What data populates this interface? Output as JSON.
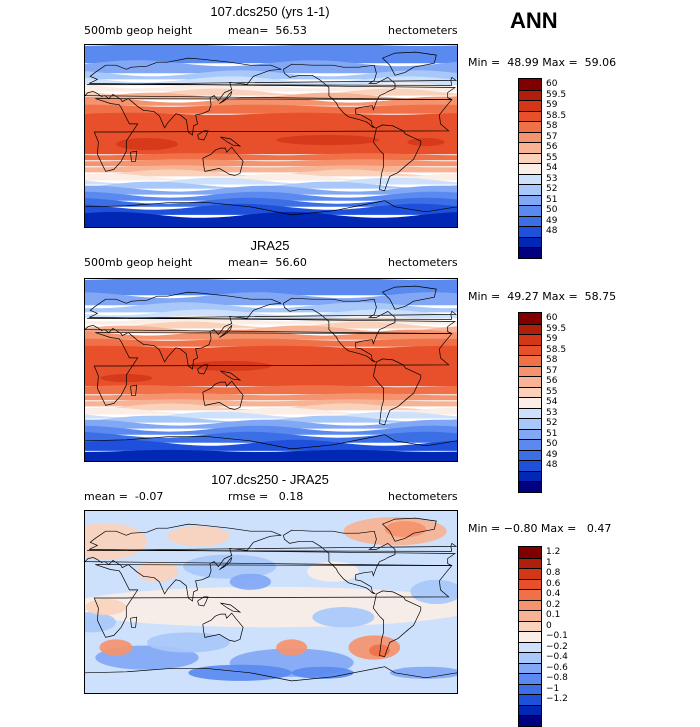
{
  "season": "ANN",
  "panels": [
    {
      "title": "107.dcs250 (yrs 1-1)",
      "left_text": "500mb geop height",
      "mean_text": "mean=  56.53",
      "units": "hectometers",
      "minmax": "Min =  48.99 Max =  59.06",
      "field": "abs",
      "colors": [
        "#000080",
        "#0028b4",
        "#1e50dc",
        "#3c6ee6",
        "#5a8af0",
        "#82a8f5",
        "#a8c8fa",
        "#cde0fc",
        "#fbeee6",
        "#fad2bc",
        "#f7b394",
        "#f4936e",
        "#f07048",
        "#e8502c",
        "#d43718",
        "#b01e0c",
        "#800000"
      ],
      "labels": [
        "48",
        "49",
        "50",
        "51",
        "52",
        "53",
        "54",
        "55",
        "56",
        "57",
        "58",
        "58.5",
        "59",
        "59.5",
        "60"
      ]
    },
    {
      "title": "JRA25",
      "left_text": "500mb geop height",
      "mean_text": "mean=  56.60",
      "units": "hectometers",
      "minmax": "Min =  49.27 Max =  58.75",
      "field": "abs",
      "colors": [
        "#000080",
        "#0028b4",
        "#1e50dc",
        "#3c6ee6",
        "#5a8af0",
        "#82a8f5",
        "#a8c8fa",
        "#cde0fc",
        "#fbeee6",
        "#fad2bc",
        "#f7b394",
        "#f4936e",
        "#f07048",
        "#e8502c",
        "#d43718",
        "#b01e0c",
        "#800000"
      ],
      "labels": [
        "48",
        "49",
        "50",
        "51",
        "52",
        "53",
        "54",
        "55",
        "56",
        "57",
        "58",
        "58.5",
        "59",
        "59.5",
        "60"
      ]
    },
    {
      "title": "107.dcs250 - JRA25",
      "left_text": "mean =  -0.07",
      "mean_text": "rmse =   0.18",
      "units": "hectometers",
      "minmax": "Min = −0.80 Max =   0.47",
      "field": "diff",
      "colors": [
        "#000080",
        "#0028b4",
        "#1e50dc",
        "#3c6ee6",
        "#5a8af0",
        "#82a8f5",
        "#a8c8fa",
        "#cde0fc",
        "#fbeee6",
        "#fad2bc",
        "#f7b394",
        "#f4936e",
        "#f07048",
        "#e8502c",
        "#d43718",
        "#b01e0c",
        "#800000"
      ],
      "labels": [
        "−1.2",
        "−1",
        "−0.8",
        "−0.6",
        "−0.4",
        "−0.2",
        "−0.1",
        "0",
        "0.1",
        "0.2",
        "0.4",
        "0.6",
        "0.8",
        "1",
        "1.2"
      ]
    }
  ]
}
